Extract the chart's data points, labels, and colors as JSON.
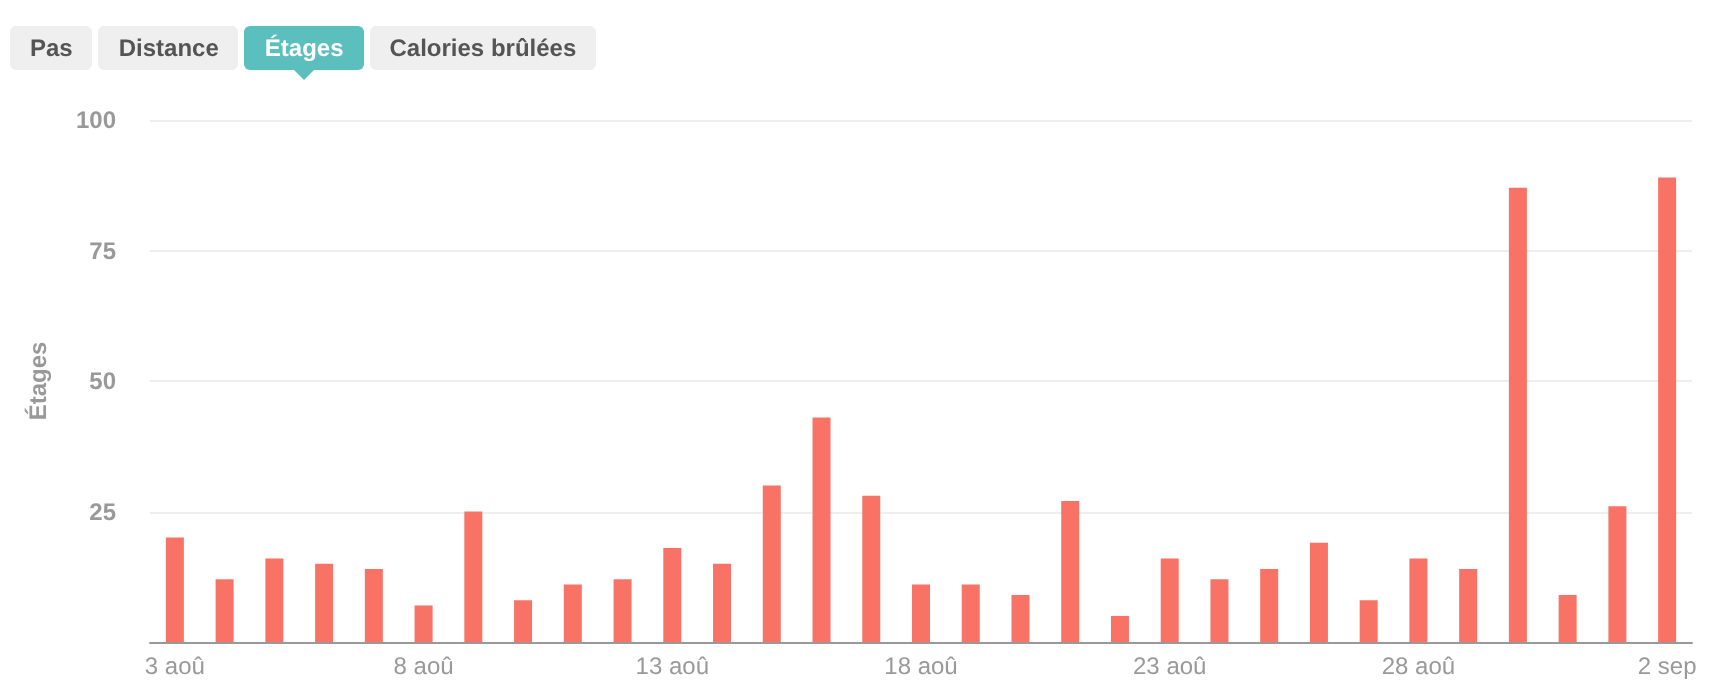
{
  "chart_data": {
    "type": "bar",
    "ylabel": "Étages",
    "color": "#f87365",
    "annotations": [
      "Pas",
      "Distance",
      "Étages",
      "Calories brûlées"
    ],
    "categories": [
      "3 aoû",
      null,
      null,
      null,
      null,
      "8 aoû",
      null,
      null,
      null,
      null,
      "13 aoû",
      null,
      null,
      null,
      null,
      "18 aoû",
      null,
      null,
      null,
      null,
      "23 aoû",
      null,
      null,
      null,
      null,
      "28 aoû",
      null,
      null,
      null,
      null,
      "2 sep"
    ],
    "values": [
      20,
      12,
      16,
      15,
      14,
      7,
      25,
      8,
      11,
      12,
      18,
      15,
      30,
      43,
      28,
      11,
      11,
      9,
      27,
      5,
      16,
      12,
      14,
      19,
      8,
      16,
      14,
      87,
      9,
      26,
      89
    ],
    "ylim": [
      0,
      100
    ],
    "yticks": [
      {
        "value": 0,
        "label": null
      },
      25,
      50,
      75,
      100
    ],
    "grid": "y"
  }
}
